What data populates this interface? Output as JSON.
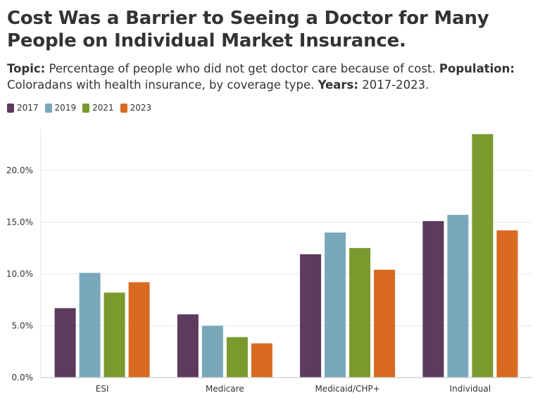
{
  "title": "Cost Was a Barrier to Seeing a Doctor for Many People on Individual Market Insurance.",
  "subtitle": {
    "topic_label": "Topic:",
    "topic_text": " Percentage of people who did not get doctor care because of cost. ",
    "population_label": "Population:",
    "population_text": " Coloradans with health insurance, by coverage type. ",
    "years_label": "Years:",
    "years_text": " 2017-2023."
  },
  "colors": {
    "2017": "#5d3a5e",
    "2019": "#79a8bb",
    "2021": "#7a9a2e",
    "2023": "#d86a22",
    "grid": "#e6e6e6",
    "axis": "#cccccc",
    "text": "#333333"
  },
  "legend": [
    {
      "label": "2017",
      "color": "#5d3a5e"
    },
    {
      "label": "2019",
      "color": "#79a8bb"
    },
    {
      "label": "2021",
      "color": "#7a9a2e"
    },
    {
      "label": "2023",
      "color": "#d86a22"
    }
  ],
  "chart_data": {
    "type": "bar",
    "categories": [
      "ESI",
      "Medicare",
      "Medicaid/CHP+",
      "Individual"
    ],
    "series": [
      {
        "name": "2017",
        "values": [
          6.7,
          6.1,
          11.9,
          15.1
        ]
      },
      {
        "name": "2019",
        "values": [
          10.1,
          5.0,
          14.0,
          15.7
        ]
      },
      {
        "name": "2021",
        "values": [
          8.2,
          3.9,
          12.5,
          23.5
        ]
      },
      {
        "name": "2023",
        "values": [
          9.2,
          3.3,
          10.4,
          14.2
        ]
      }
    ],
    "y_ticks": [
      "0.0%",
      "5.0%",
      "10.0%",
      "15.0%",
      "20.0%"
    ],
    "y_tick_values": [
      0,
      5,
      10,
      15,
      20
    ],
    "ylim": [
      0,
      24
    ],
    "xlabel": "",
    "ylabel": "",
    "grid": true,
    "legend_position": "top-left"
  }
}
